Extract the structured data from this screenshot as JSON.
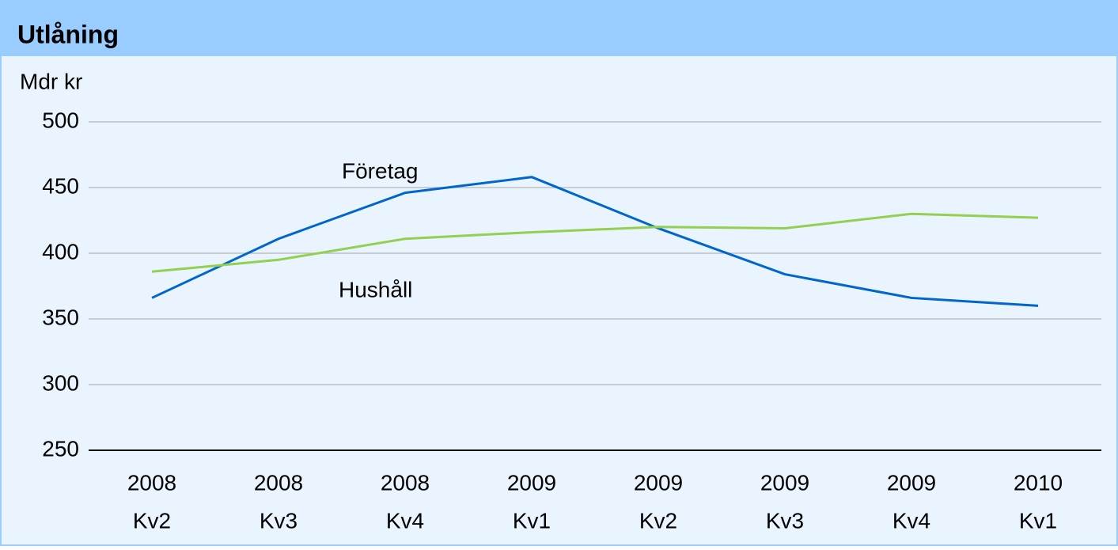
{
  "chart_data": {
    "type": "line",
    "title": "Utlåning",
    "y_label": "Mdr kr",
    "categories": [
      [
        "2008",
        "Kv2"
      ],
      [
        "2008",
        "Kv3"
      ],
      [
        "2008",
        "Kv4"
      ],
      [
        "2009",
        "Kv1"
      ],
      [
        "2009",
        "Kv2"
      ],
      [
        "2009",
        "Kv3"
      ],
      [
        "2009",
        "Kv4"
      ],
      [
        "2010",
        "Kv1"
      ]
    ],
    "series": [
      {
        "name": "Företag",
        "color": "#0066cc",
        "values": [
          366,
          411,
          446,
          458,
          419,
          384,
          366,
          360
        ]
      },
      {
        "name": "Hushåll",
        "color": "#92d050",
        "values": [
          386,
          395,
          411,
          416,
          420,
          419,
          430,
          427
        ]
      }
    ],
    "ylim": [
      250,
      500
    ],
    "yticks": [
      250,
      300,
      350,
      400,
      450,
      500
    ],
    "grid": true
  }
}
